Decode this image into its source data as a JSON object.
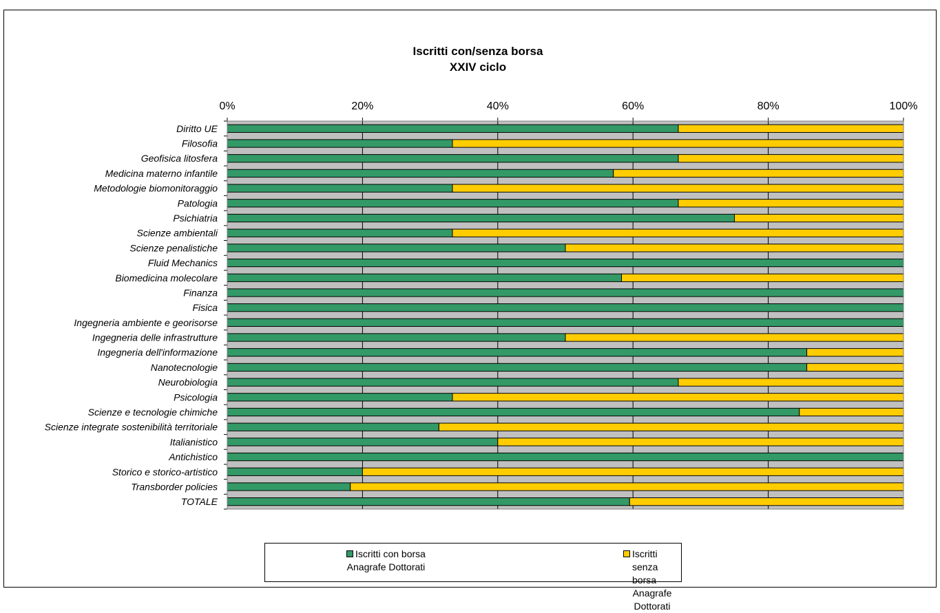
{
  "chart_data": {
    "type": "bar",
    "orientation": "horizontal",
    "stacking": "percent",
    "title": "Iscritti con/senza borsa",
    "subtitle": "XXIV ciclo",
    "xlim": [
      0,
      100
    ],
    "x_ticks": [
      "0%",
      "20%",
      "40%",
      "60%",
      "80%",
      "100%"
    ],
    "x_axis_position": "top",
    "grid": true,
    "plot_background": "#c0c0c0",
    "categories": [
      "Diritto UE",
      "Filosofia",
      "Geofisica litosfera",
      "Medicina materno infantile",
      "Metodologie biomonitoraggio",
      "Patologia",
      "Psichiatria",
      "Scienze ambientali",
      "Scienze penalistiche",
      "Fluid Mechanics",
      "Biomedicina molecolare",
      "Finanza",
      "Fisica",
      "Ingegneria ambiente e georisorse",
      "Ingegneria delle infrastrutture",
      "Ingegneria dell'informazione",
      "Nanotecnologie",
      "Neurobiologia",
      "Psicologia",
      "Scienze e tecnologie chimiche",
      "Scienze integrate sostenibilità territoriale",
      "Italianistico",
      "Antichistico",
      "Storico e storico-artistico",
      "Transborder policies",
      "TOTALE"
    ],
    "series": [
      {
        "name": "Iscritti con borsa",
        "source": "Anagrafe Dottorati",
        "color": "#339966",
        "values": [
          66.7,
          33.3,
          66.7,
          57.1,
          33.3,
          66.7,
          75,
          33.3,
          50,
          100,
          58.3,
          100,
          100,
          100,
          50,
          85.7,
          85.7,
          66.7,
          33.3,
          84.6,
          31.3,
          40,
          100,
          20,
          18.2,
          59.5
        ]
      },
      {
        "name": "Iscritti senza borsa",
        "source": "Anagrafe Dottorati",
        "color": "#ffcc00",
        "values": [
          33.3,
          66.7,
          33.3,
          42.9,
          66.7,
          33.3,
          25,
          66.7,
          50,
          0,
          41.7,
          0,
          0,
          0,
          50,
          14.3,
          14.3,
          33.3,
          66.7,
          15.4,
          68.7,
          60,
          0,
          80,
          81.8,
          40.5
        ]
      }
    ],
    "legend_position": "bottom"
  }
}
